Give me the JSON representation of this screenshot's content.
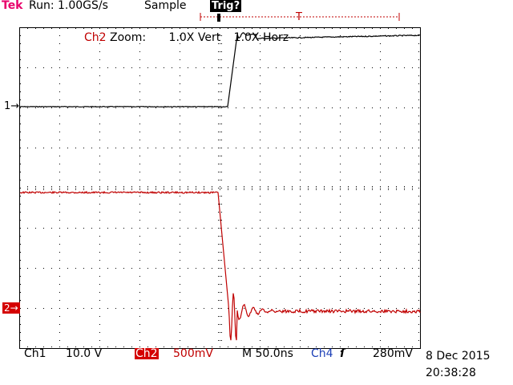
{
  "status_bar": {
    "brand": "Tek",
    "run_status": "Run: 1.00GS/s",
    "acquisition_mode": "Sample",
    "trigger_status": "Trig?"
  },
  "zoom_label": {
    "channel": "Ch2",
    "text": "Zoom:",
    "vert": "1.0X Vert",
    "horz": "1.0X Horz"
  },
  "markers": {
    "ch1": "1→",
    "ch2": "2→",
    "trigger_position": "T"
  },
  "readout": {
    "ch1_label": "Ch1",
    "ch1_scale": "10.0 V",
    "ch2_label": "Ch2",
    "ch2_scale": "500mV",
    "timebase": "M 50.0ns",
    "trigger_source": "Ch4",
    "trigger_slope": "ſ",
    "trigger_level": "280mV",
    "date": "8 Dec 2015",
    "time": "20:38:28"
  },
  "colors": {
    "ch1_trace": "#000000",
    "ch2_trace": "#c00000",
    "brand": "#e8006b",
    "ch4": "#1c3fb7"
  }
}
